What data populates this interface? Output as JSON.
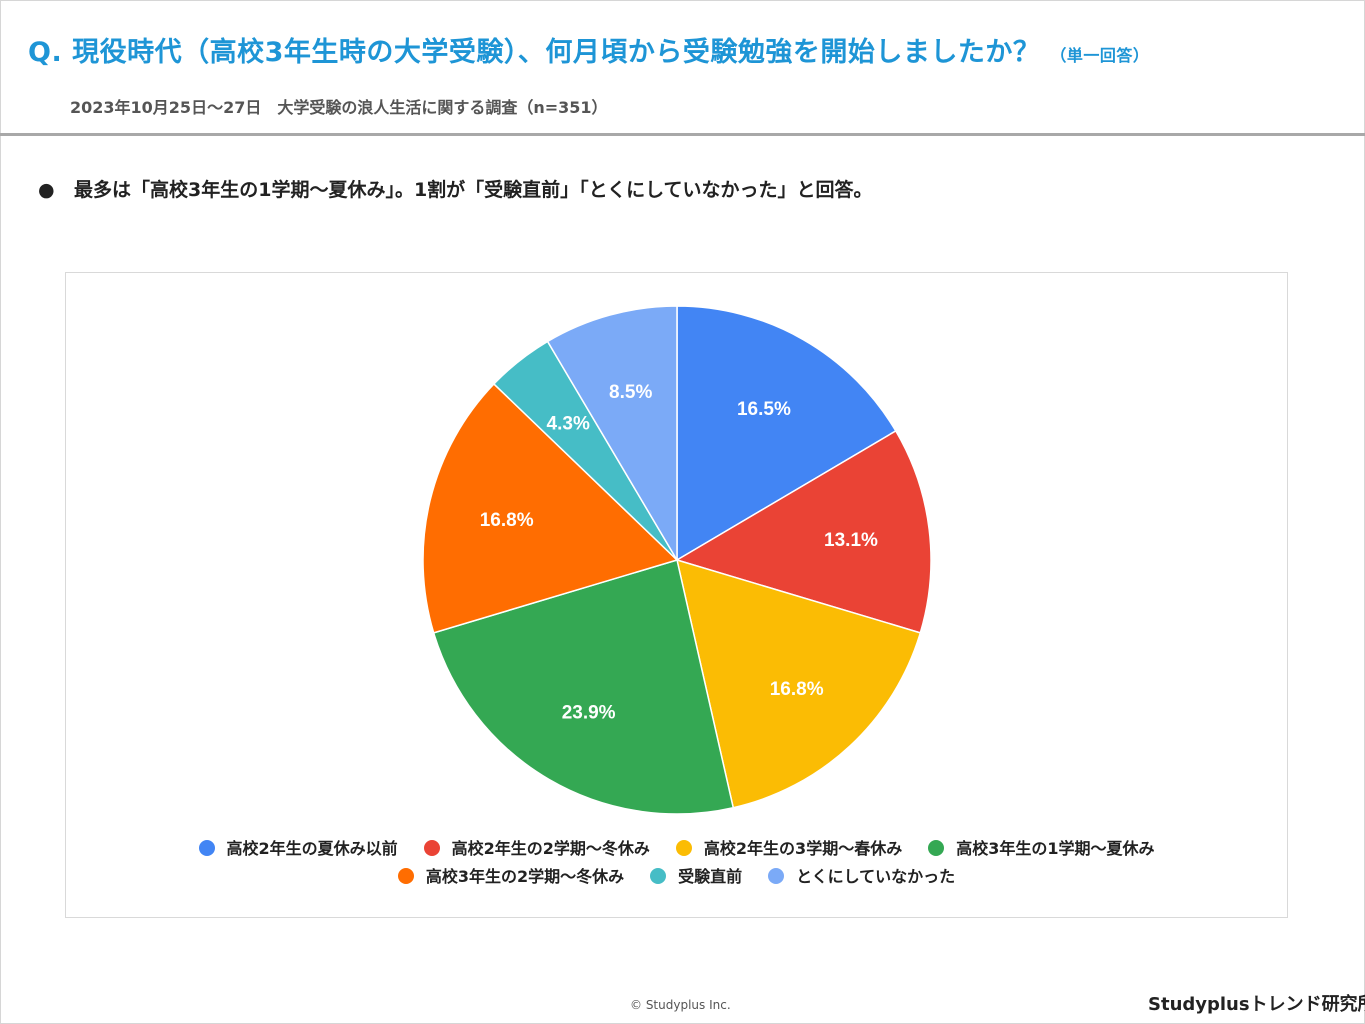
{
  "header": {
    "title": "Q. 現役時代（高校3年生時の大学受験）、何月頃から受験勉強を開始しましたか？",
    "title_note": "（単一回答）",
    "survey_info": "2023年10月25日〜27日　大学受験の浪人生活に関する調査（n=351）"
  },
  "summary": {
    "bullet": "●",
    "text": "最多は「高校3年生の1学期〜夏休み」。1割が「受験直前」「とくにしていなかった」と回答。"
  },
  "chart_data": {
    "type": "pie",
    "title": "",
    "unit": "%",
    "legend_position": "bottom",
    "categories": [
      "高校2年生の夏休み以前",
      "高校2年生の2学期〜冬休み",
      "高校2年生の3学期〜春休み",
      "高校3年生の1学期〜夏休み",
      "高校3年生の2学期〜冬休み",
      "受験直前",
      "とくにしていなかった"
    ],
    "values": [
      16.5,
      13.1,
      16.8,
      23.9,
      16.8,
      4.3,
      8.5
    ],
    "labels": [
      "16.5%",
      "13.1%",
      "16.8%",
      "23.9%",
      "16.8%",
      "4.3%",
      "8.5%"
    ],
    "colors": [
      "#4285f4",
      "#ea4335",
      "#fbbc04",
      "#34a853",
      "#ff6d01",
      "#46bdc6",
      "#7baaf7"
    ]
  },
  "footer": {
    "copyright": "© Studyplus Inc.",
    "brand": "Studyplusトレンド研究所"
  }
}
